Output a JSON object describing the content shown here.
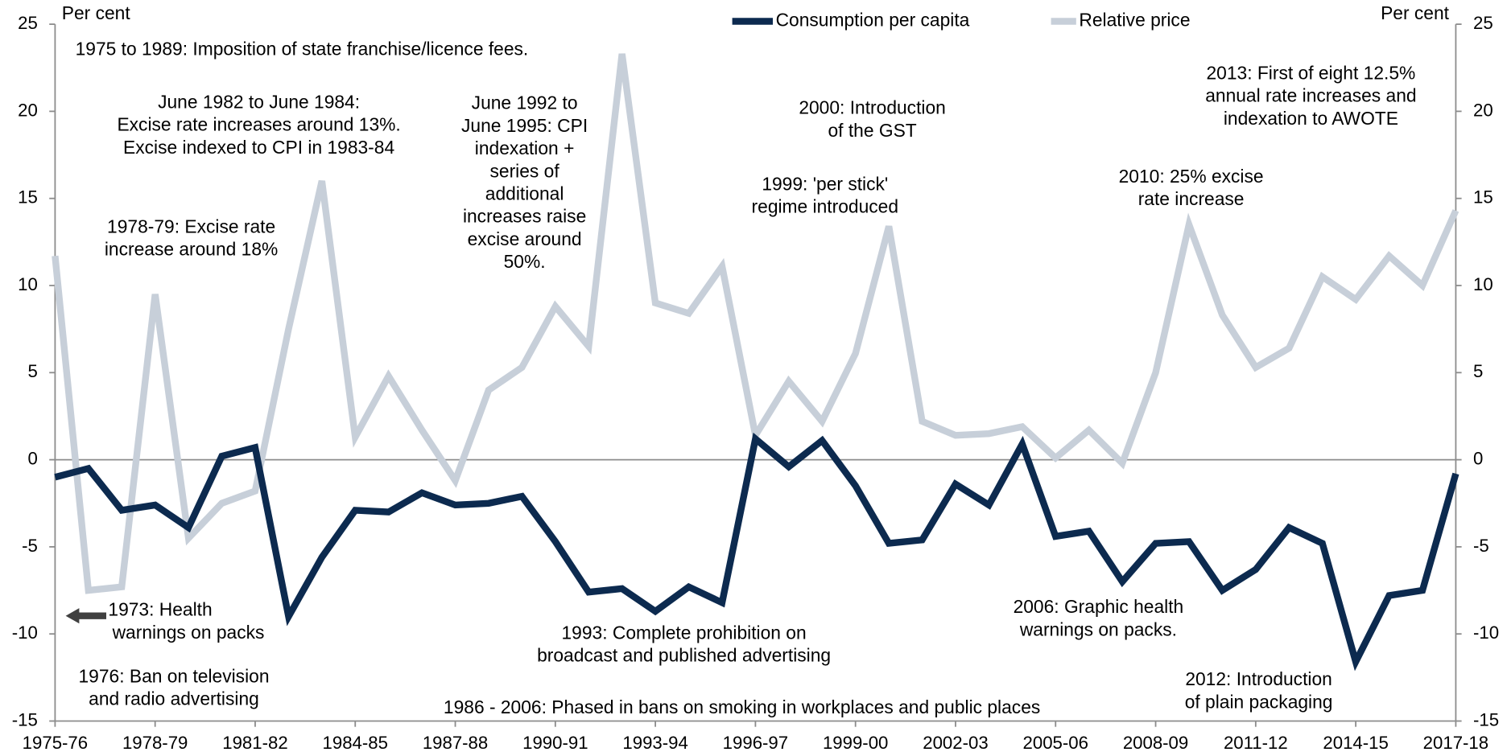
{
  "chart_data": {
    "type": "line",
    "y_axis_label": "Per cent",
    "y2_axis_label": "Per cent",
    "categories": [
      "1975-76",
      null,
      null,
      "1978-79",
      null,
      null,
      "1981-82",
      null,
      null,
      "1984-85",
      null,
      null,
      "1987-88",
      null,
      null,
      "1990-91",
      null,
      null,
      "1993-94",
      null,
      null,
      "1996-97",
      null,
      null,
      "1999-00",
      null,
      null,
      "2002-03",
      null,
      null,
      "2005-06",
      null,
      null,
      "2008-09",
      null,
      null,
      "2011-12",
      null,
      null,
      "2014-15",
      null,
      null,
      "2017-18"
    ],
    "series": [
      {
        "name": "Consumption per capita",
        "color": "#0c2a4f",
        "values": [
          -1.0,
          -0.5,
          -2.9,
          -2.6,
          -3.9,
          0.2,
          0.7,
          -9.0,
          -5.6,
          -2.9,
          -3.0,
          -1.9,
          -2.6,
          -2.5,
          -2.1,
          -4.7,
          -7.6,
          -7.4,
          -8.7,
          -7.3,
          -8.2,
          1.2,
          -0.4,
          1.1,
          -1.5,
          -4.8,
          -4.6,
          -1.4,
          -2.6,
          0.9,
          -4.4,
          -4.1,
          -7.0,
          -4.8,
          -4.7,
          -7.5,
          -6.3,
          -3.9,
          -4.8,
          -11.6,
          -7.8,
          -7.5,
          -0.8
        ]
      },
      {
        "name": "Relative price",
        "color": "#c7cfd9",
        "values": [
          11.7,
          -7.5,
          -7.3,
          9.5,
          -4.5,
          -2.5,
          -1.8,
          7.5,
          16.0,
          1.3,
          4.8,
          1.7,
          -1.2,
          4.0,
          5.3,
          8.8,
          6.5,
          23.3,
          9.0,
          8.4,
          11.1,
          1.4,
          4.5,
          2.2,
          6.1,
          13.4,
          2.2,
          1.4,
          1.5,
          1.9,
          0.1,
          1.7,
          -0.2,
          5.0,
          13.5,
          8.3,
          5.3,
          6.4,
          10.5,
          9.2,
          11.7,
          10.0,
          14.3
        ]
      }
    ],
    "ylim": [
      -15,
      25
    ],
    "yticks": [
      -15,
      -10,
      -5,
      0,
      5,
      10,
      15,
      20,
      25
    ],
    "y2lim": [
      -15,
      25
    ],
    "y2ticks": [
      -15,
      -10,
      -5,
      0,
      5,
      10,
      15,
      20,
      25
    ],
    "legend": "top",
    "annotations": [
      [
        "1975 to 1989: Imposition of state franchise/licence fees."
      ],
      [
        "June 1982 to June 1984:",
        "Excise rate increases around 13%.",
        "Excise indexed to CPI in 1983-84"
      ],
      [
        "1978-79: Excise rate",
        "increase around 18%"
      ],
      [
        "June 1992 to",
        "June 1995: CPI",
        "indexation +",
        "series of",
        "additional",
        "increases raise",
        "excise around",
        "50%."
      ],
      [
        "2000: Introduction",
        "of the GST"
      ],
      [
        "1999: 'per stick'",
        "regime introduced"
      ],
      [
        "2010: 25% excise",
        "rate increase"
      ],
      [
        "2013: First of eight 12.5%",
        "annual rate increases and",
        "indexation to AWOTE"
      ],
      [
        "1973: Health",
        "warnings on packs"
      ],
      [
        "1976: Ban on television",
        "and radio advertising"
      ],
      [
        "1993: Complete prohibition on",
        "broadcast and published advertising"
      ],
      [
        "1986 - 2006: Phased in bans on smoking in workplaces and public places"
      ],
      [
        "2006: Graphic health",
        "warnings on packs."
      ],
      [
        "2012: Introduction",
        "of plain packaging"
      ]
    ]
  }
}
